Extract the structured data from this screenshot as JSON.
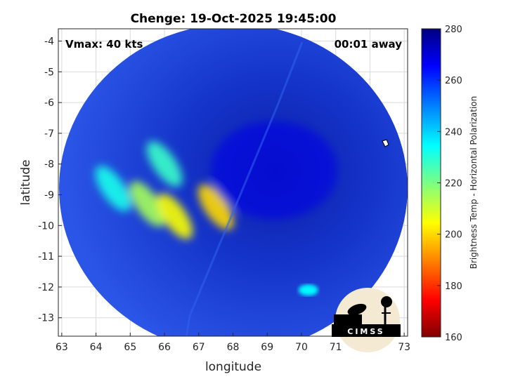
{
  "chart_data": {
    "type": "heatmap",
    "title": "Chenge: 19-Oct-2025 19:45:00",
    "xlabel": "longitude",
    "ylabel": "latitude",
    "xlim": [
      62.9,
      73.1
    ],
    "ylim": [
      -13.6,
      -3.6
    ],
    "x_ticks": [
      "63",
      "64",
      "65",
      "66",
      "67",
      "68",
      "69",
      "70",
      "71",
      "72",
      "73"
    ],
    "y_ticks": [
      "-4",
      "-5",
      "-6",
      "-7",
      "-8",
      "-9",
      "-10",
      "-11",
      "-12",
      "-13"
    ],
    "grid": true,
    "annotations": {
      "vmax": "Vmax: 40 kts",
      "time_away": "00:01 away"
    },
    "colorbar": {
      "label": "Brightness Temp - Horizontal Polarization",
      "range": [
        160,
        280
      ],
      "ticks": [
        "280",
        "260",
        "240",
        "220",
        "200",
        "180",
        "160"
      ],
      "colormap": "jet"
    },
    "swath_center": [
      68.0,
      -8.6
    ],
    "features": [
      {
        "kind": "cold-band",
        "lon": 65.5,
        "lat": -9.3,
        "value": 215
      },
      {
        "kind": "cold-band",
        "lon": 66.3,
        "lat": -9.7,
        "value": 205
      },
      {
        "kind": "cold-band",
        "lon": 67.5,
        "lat": -9.4,
        "value": 200
      },
      {
        "kind": "cold-band",
        "lon": 66.0,
        "lat": -8.0,
        "value": 228
      },
      {
        "kind": "cold-band",
        "lon": 64.5,
        "lat": -8.8,
        "value": 232
      },
      {
        "kind": "cold-spot",
        "lon": 70.2,
        "lat": -12.1,
        "value": 235
      },
      {
        "kind": "eye-region",
        "lon": 69.2,
        "lat": -8.2,
        "value": 268
      }
    ]
  },
  "logo": {
    "text": "CIMSS"
  },
  "colors": {
    "background_swath": "#1e3fd6",
    "deep_warm": "#0a1a8a",
    "axes": "#262626",
    "grid": "#d9d9d9"
  }
}
